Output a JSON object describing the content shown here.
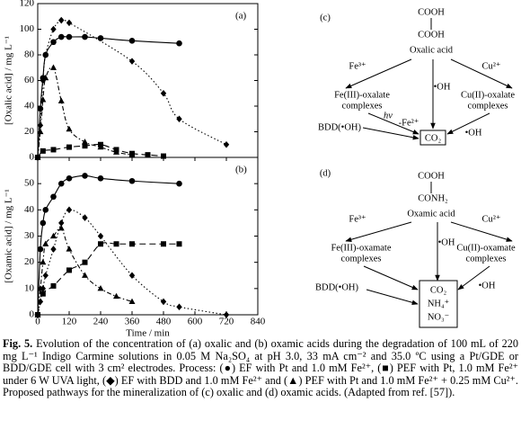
{
  "chart_data": [
    {
      "type": "line",
      "panel_label": "(a)",
      "ylabel": "[Oxalic acid] / mg L⁻¹",
      "xlim": [
        0,
        840
      ],
      "ylim": [
        0,
        120
      ],
      "yticks": [
        0,
        20,
        40,
        60,
        80,
        100,
        120
      ],
      "series": [
        {
          "marker": "circle",
          "dash": "solid",
          "color": "#000000",
          "x": [
            0,
            10,
            20,
            30,
            60,
            90,
            120,
            180,
            240,
            360,
            540
          ],
          "values": [
            0,
            38,
            62,
            80,
            90,
            94,
            94,
            94,
            93,
            91,
            89
          ]
        },
        {
          "marker": "square",
          "dash": "dash",
          "color": "#000000",
          "x": [
            0,
            20,
            60,
            120,
            180,
            240,
            300,
            360,
            420,
            480
          ],
          "values": [
            0,
            5,
            6,
            8,
            9,
            10,
            6,
            3,
            2,
            1
          ]
        },
        {
          "marker": "diamond",
          "dash": "dot",
          "color": "#000000",
          "x": [
            0,
            10,
            20,
            30,
            60,
            90,
            120,
            360,
            480,
            540,
            720
          ],
          "values": [
            0,
            25,
            60,
            80,
            100,
            107,
            105,
            75,
            50,
            30,
            10
          ]
        },
        {
          "marker": "triangle",
          "dash": "dashdot",
          "color": "#000000",
          "x": [
            0,
            10,
            20,
            30,
            60,
            90,
            120,
            180,
            240,
            300,
            360
          ],
          "values": [
            0,
            20,
            45,
            62,
            70,
            44,
            22,
            12,
            8,
            4,
            2
          ]
        }
      ]
    },
    {
      "type": "line",
      "panel_label": "(b)",
      "ylabel": "[Oxamic acid] / mg L⁻¹",
      "xlabel": "Time / min",
      "xlim": [
        0,
        840
      ],
      "xticks": [
        0,
        120,
        240,
        360,
        480,
        600,
        720,
        840
      ],
      "ylim": [
        0,
        60
      ],
      "yticks": [
        0,
        10,
        20,
        30,
        40,
        50
      ],
      "series": [
        {
          "marker": "circle",
          "dash": "solid",
          "color": "#000000",
          "x": [
            0,
            10,
            20,
            30,
            60,
            90,
            120,
            180,
            240,
            360,
            540
          ],
          "values": [
            0,
            25,
            35,
            40,
            45,
            50,
            52,
            53,
            52,
            51,
            50
          ]
        },
        {
          "marker": "square",
          "dash": "dash",
          "color": "#000000",
          "x": [
            0,
            20,
            60,
            120,
            180,
            240,
            300,
            360,
            480,
            540
          ],
          "values": [
            0,
            8,
            11,
            17,
            20,
            27,
            27,
            27,
            27,
            27
          ]
        },
        {
          "marker": "diamond",
          "dash": "dot",
          "color": "#000000",
          "x": [
            0,
            10,
            20,
            30,
            60,
            90,
            120,
            180,
            240,
            360,
            480,
            540,
            720
          ],
          "values": [
            0,
            5,
            10,
            15,
            25,
            35,
            40,
            37,
            30,
            15,
            5,
            3,
            0
          ]
        },
        {
          "marker": "triangle",
          "dash": "dashdot",
          "color": "#000000",
          "x": [
            0,
            10,
            20,
            30,
            60,
            90,
            120,
            180,
            240,
            300,
            360
          ],
          "values": [
            0,
            10,
            20,
            27,
            30,
            33,
            25,
            15,
            10,
            7,
            5
          ]
        }
      ]
    }
  ],
  "diagram_c": {
    "label": "(c)",
    "top": "COOH",
    "bottom": "COOH",
    "name": "Oxalic acid",
    "fe": "Fe³⁺",
    "cu": "Cu²⁺",
    "oh_center": "•OH",
    "fe_complex": [
      "Fe(III)-oxalate",
      "complexes"
    ],
    "cu_complex": [
      "Cu(II)-oxalate",
      "complexes"
    ],
    "hv": "hν",
    "fe_loss": "-Fe²⁺",
    "bdd": "BDD(•OH)",
    "oh_right": "•OH",
    "product": [
      "CO₂"
    ]
  },
  "diagram_d": {
    "label": "(d)",
    "top": "COOH",
    "bottom": "CONH₂",
    "name": "Oxamic acid",
    "fe": "Fe³⁺",
    "cu": "Cu²⁺",
    "oh_center": "•OH",
    "fe_complex": [
      "Fe(III)-oxamate",
      "complexes"
    ],
    "cu_complex": [
      "Cu(II)-oxamate",
      "complexes"
    ],
    "bdd": "BDD(•OH)",
    "oh_right": "•OH",
    "product": [
      "CO₂",
      "NH₄⁺",
      "NO₃⁻"
    ]
  },
  "caption": {
    "label": "Fig. 5.",
    "text": "Evolution of the concentration of (a) oxalic and (b) oxamic acids during the degradation of 100 mL of 220 mg L⁻¹ Indigo Carmine solutions in 0.05 M Na₂SO₄ at pH 3.0, 33 mA cm⁻² and 35.0 ºC using a Pt/GDE or BDD/GDE cell with 3 cm² electrodes. Process: (●) EF with Pt and 1.0 mM Fe²⁺, (■) PEF with Pt, 1.0 mM Fe²⁺ under 6 W UVA light, (◆) EF with BDD and 1.0 mM Fe²⁺ and (▲) PEF with Pt and 1.0 mM Fe²⁺ + 0.25 mM Cu²⁺. Proposed pathways for the mineralization of (c) oxalic and (d) oxamic acids. (Adapted from ref. [57])."
  }
}
